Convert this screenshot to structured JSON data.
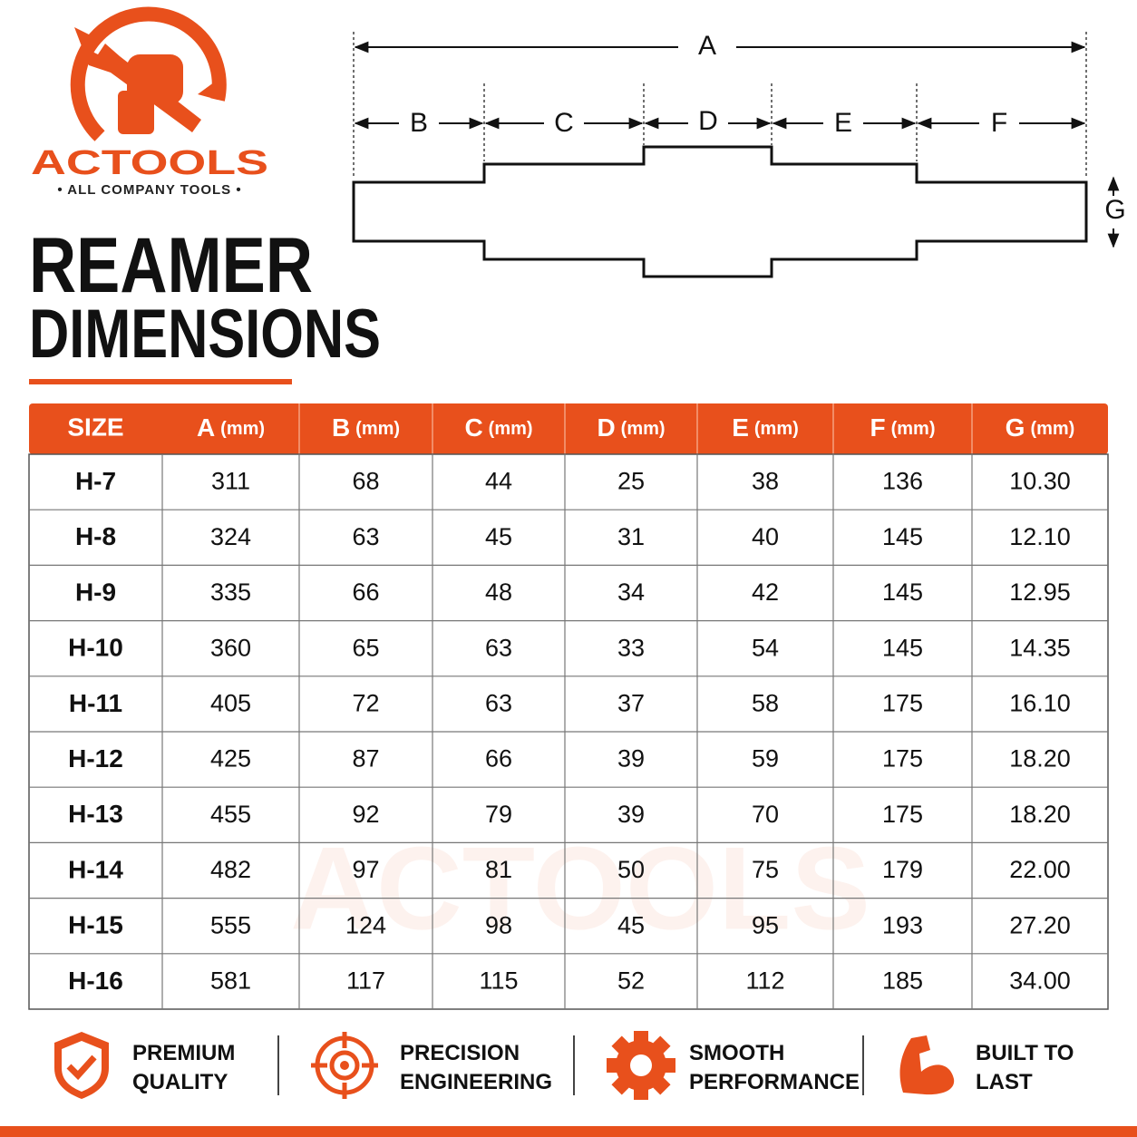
{
  "brand": {
    "name": "ACTOOLS",
    "tagline": "• ALL COMPANY TOOLS •"
  },
  "title": [
    "REAMER",
    "DIMENSIONS"
  ],
  "diagram": {
    "labels": [
      "A",
      "B",
      "C",
      "D",
      "E",
      "F",
      "G"
    ]
  },
  "table": {
    "header": {
      "first": "SIZE",
      "columns": [
        {
          "letter": "A",
          "unit": "(mm)"
        },
        {
          "letter": "B",
          "unit": "(mm)"
        },
        {
          "letter": "C",
          "unit": "(mm)"
        },
        {
          "letter": "D",
          "unit": "(mm)"
        },
        {
          "letter": "E",
          "unit": "(mm)"
        },
        {
          "letter": "F",
          "unit": "(mm)"
        },
        {
          "letter": "G",
          "unit": "(mm)"
        }
      ]
    },
    "rows": [
      [
        "H-7",
        "311",
        "68",
        "44",
        "25",
        "38",
        "136",
        "10.30"
      ],
      [
        "H-8",
        "324",
        "63",
        "45",
        "31",
        "40",
        "145",
        "12.10"
      ],
      [
        "H-9",
        "335",
        "66",
        "48",
        "34",
        "42",
        "145",
        "12.95"
      ],
      [
        "H-10",
        "360",
        "65",
        "63",
        "33",
        "54",
        "145",
        "14.35"
      ],
      [
        "H-11",
        "405",
        "72",
        "63",
        "37",
        "58",
        "175",
        "16.10"
      ],
      [
        "H-12",
        "425",
        "87",
        "66",
        "39",
        "59",
        "175",
        "18.20"
      ],
      [
        "H-13",
        "455",
        "92",
        "79",
        "39",
        "70",
        "175",
        "18.20"
      ],
      [
        "H-14",
        "482",
        "97",
        "81",
        "50",
        "75",
        "179",
        "22.00"
      ],
      [
        "H-15",
        "555",
        "124",
        "98",
        "45",
        "95",
        "193",
        "27.20"
      ],
      [
        "H-16",
        "581",
        "117",
        "115",
        "52",
        "112",
        "185",
        "34.00"
      ]
    ]
  },
  "features": [
    [
      "PREMIUM",
      "QUALITY"
    ],
    [
      "PRECISION",
      "ENGINEERING"
    ],
    [
      "SMOOTH",
      "PERFORMANCE"
    ],
    [
      "BUILT TO",
      "LAST"
    ]
  ]
}
